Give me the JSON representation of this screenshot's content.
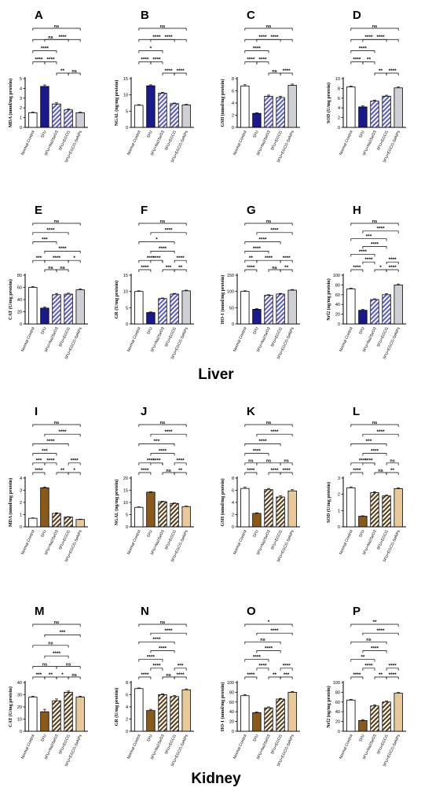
{
  "sections": {
    "liver": "Liver",
    "kidney": "Kidney"
  },
  "categories": [
    "Normal Control",
    "5FU",
    "5FU+Na2SeO3",
    "5FU+EGCG",
    "5FU+EGCG-SeNPs"
  ],
  "colors": {
    "liver": [
      "#ffffff",
      "#1a1a8c",
      "#9b9be6",
      "#c7c7f2",
      "#cfcfd6"
    ],
    "kidney": [
      "#ffffff",
      "#8b5a1a",
      "#9c6b2e",
      "#b98a4e",
      "#e8c99a"
    ],
    "liver_hatch": "#5a5ad0",
    "kidney_hatch": "#5a3a10"
  },
  "chart_data": [
    {
      "type": "bar",
      "panel": "A",
      "organ": "liver",
      "ylabel": "MDA (nmol/mg protein)",
      "ylim": [
        0,
        5
      ],
      "ticks": [
        0,
        1,
        2,
        3,
        4,
        5
      ],
      "values": [
        1.5,
        4.2,
        2.4,
        1.8,
        1.5
      ],
      "errors": [
        0.08,
        0.15,
        0.12,
        0.08,
        0.06
      ],
      "brackets": [
        [
          "ns",
          0,
          4,
          4
        ],
        [
          "ns",
          0,
          3,
          3
        ],
        [
          "****",
          0,
          2,
          2
        ],
        [
          "****",
          0,
          1,
          1
        ],
        [
          "****",
          1,
          4,
          3
        ],
        [
          "****",
          1,
          2,
          1
        ],
        [
          "**",
          2,
          3,
          0
        ],
        [
          "ns",
          3,
          4,
          0
        ]
      ]
    },
    {
      "type": "bar",
      "panel": "B",
      "organ": "liver",
      "ylabel": "NGAL (ng/mg protein)",
      "ylim": [
        0,
        15
      ],
      "ticks": [
        0,
        5,
        10,
        15
      ],
      "values": [
        6.8,
        12.8,
        10.5,
        7.3,
        6.9
      ],
      "errors": [
        0.2,
        0.3,
        0.3,
        0.2,
        0.2
      ],
      "brackets": [
        [
          "ns",
          0,
          4,
          4
        ],
        [
          "****",
          0,
          3,
          3
        ],
        [
          "*",
          0,
          2,
          2
        ],
        [
          "****",
          0,
          1,
          1
        ],
        [
          "****",
          1,
          4,
          3
        ],
        [
          "****",
          1,
          2,
          1
        ],
        [
          "****",
          2,
          3,
          0
        ],
        [
          "****",
          3,
          4,
          0
        ]
      ]
    },
    {
      "type": "bar",
      "panel": "C",
      "organ": "liver",
      "ylabel": "GSH (nmol/mg protein)",
      "ylim": [
        0,
        8
      ],
      "ticks": [
        0,
        2,
        4,
        6,
        8
      ],
      "values": [
        6.8,
        2.3,
        5.1,
        4.9,
        6.9
      ],
      "errors": [
        0.2,
        0.1,
        0.2,
        0.2,
        0.2
      ],
      "brackets": [
        [
          "ns",
          0,
          4,
          4
        ],
        [
          "****",
          0,
          3,
          3
        ],
        [
          "****",
          0,
          2,
          2
        ],
        [
          "****",
          0,
          1,
          1
        ],
        [
          "****",
          1,
          4,
          3
        ],
        [
          "****",
          1,
          2,
          1
        ],
        [
          "ns",
          2,
          3,
          0
        ],
        [
          "****",
          3,
          4,
          0
        ]
      ]
    },
    {
      "type": "bar",
      "panel": "D",
      "organ": "liver",
      "ylabel": "SOD (U/mg protein)",
      "ylim": [
        0,
        10
      ],
      "ticks": [
        0,
        2,
        4,
        6,
        8,
        10
      ],
      "values": [
        8.3,
        4.2,
        5.4,
        6.4,
        8.1
      ],
      "errors": [
        0.2,
        0.2,
        0.2,
        0.2,
        0.2
      ],
      "brackets": [
        [
          "ns",
          0,
          4,
          4
        ],
        [
          "****",
          0,
          3,
          3
        ],
        [
          "****",
          0,
          2,
          2
        ],
        [
          "****",
          0,
          1,
          1
        ],
        [
          "****",
          1,
          4,
          3
        ],
        [
          "**",
          1,
          2,
          1
        ],
        [
          "**",
          2,
          3,
          0
        ],
        [
          "****",
          3,
          4,
          0
        ]
      ]
    },
    {
      "type": "bar",
      "panel": "E",
      "organ": "liver",
      "ylabel": "CAT (U/mg protein)",
      "ylim": [
        0,
        80
      ],
      "ticks": [
        0,
        20,
        40,
        60,
        80
      ],
      "values": [
        60,
        26,
        48,
        49,
        56
      ],
      "errors": [
        1.5,
        2,
        2,
        1.5,
        1.5
      ],
      "brackets": [
        [
          "ns",
          0,
          4,
          5
        ],
        [
          "****",
          0,
          3,
          4
        ],
        [
          "***",
          0,
          2,
          3
        ],
        [
          "****",
          1,
          4,
          2
        ],
        [
          "***",
          0,
          1,
          1
        ],
        [
          "****",
          1,
          3,
          1
        ],
        [
          "*",
          3,
          4,
          1
        ],
        [
          "ns",
          1,
          2,
          0
        ],
        [
          "ns",
          2,
          3,
          0
        ]
      ]
    },
    {
      "type": "bar",
      "panel": "F",
      "organ": "liver",
      "ylabel": "GR (U/mg protein)",
      "ylim": [
        0,
        15
      ],
      "ticks": [
        0,
        5,
        10,
        15
      ],
      "values": [
        10,
        3.5,
        7.8,
        9.2,
        10.2
      ],
      "errors": [
        0.2,
        0.2,
        0.2,
        0.2,
        0.2
      ],
      "brackets": [
        [
          "ns",
          0,
          4,
          5
        ],
        [
          "****",
          1,
          4,
          4
        ],
        [
          "*",
          0,
          3,
          3
        ],
        [
          "****",
          1,
          3,
          2
        ],
        [
          "****",
          0,
          2,
          1
        ],
        [
          "****",
          1,
          2,
          1
        ],
        [
          "****",
          3,
          4,
          1
        ],
        [
          "****",
          0,
          1,
          0
        ],
        [
          "***",
          2,
          3,
          0
        ],
        [
          "**",
          3,
          4,
          0
        ]
      ]
    },
    {
      "type": "bar",
      "panel": "G",
      "organ": "liver",
      "ylabel": "HO-1 (nmol/mg protein)",
      "ylim": [
        0,
        150
      ],
      "ticks": [
        0,
        50,
        100,
        150
      ],
      "values": [
        100,
        45,
        88,
        92,
        104
      ],
      "errors": [
        2,
        2,
        2,
        2,
        2
      ],
      "brackets": [
        [
          "ns",
          0,
          4,
          5
        ],
        [
          "****",
          1,
          4,
          4
        ],
        [
          "****",
          0,
          3,
          3
        ],
        [
          "****",
          0,
          2,
          2
        ],
        [
          "**",
          0,
          1,
          1
        ],
        [
          "****",
          1,
          3,
          1
        ],
        [
          "****",
          3,
          4,
          1
        ],
        [
          "****",
          0,
          1,
          0
        ],
        [
          "ns",
          2,
          3,
          0
        ],
        [
          "**",
          3,
          4,
          0
        ]
      ]
    },
    {
      "type": "bar",
      "panel": "H",
      "organ": "liver",
      "ylabel": "Nrf2 (ng/mg protein)",
      "ylim": [
        0,
        100
      ],
      "ticks": [
        0,
        20,
        40,
        60,
        80,
        100
      ],
      "values": [
        72,
        28,
        50,
        60,
        80
      ],
      "errors": [
        1.5,
        2,
        1.5,
        2,
        2
      ],
      "brackets": [
        [
          "ns",
          0,
          4,
          6
        ],
        [
          "****",
          1,
          4,
          5
        ],
        [
          "***",
          0,
          3,
          4
        ],
        [
          "****",
          1,
          3,
          3
        ],
        [
          "****",
          0,
          2,
          2
        ],
        [
          "****",
          1,
          2,
          1
        ],
        [
          "****",
          3,
          4,
          1
        ],
        [
          "****",
          0,
          1,
          0
        ],
        [
          "*",
          2,
          3,
          0
        ],
        [
          "****",
          3,
          4,
          0
        ]
      ]
    },
    {
      "type": "bar",
      "panel": "I",
      "organ": "kidney",
      "ylabel": "MDA (nmol/mg protein)",
      "ylim": [
        0,
        4
      ],
      "ticks": [
        0,
        1,
        2,
        3,
        4
      ],
      "values": [
        0.7,
        3.2,
        1.1,
        0.8,
        0.6
      ],
      "errors": [
        0.03,
        0.06,
        0.05,
        0.03,
        0.03
      ],
      "brackets": [
        [
          "ns",
          0,
          4,
          5
        ],
        [
          "****",
          1,
          4,
          4
        ],
        [
          "****",
          0,
          3,
          3
        ],
        [
          "***",
          0,
          2,
          2
        ],
        [
          "***",
          0,
          1,
          1
        ],
        [
          "****",
          1,
          2,
          1
        ],
        [
          "****",
          3,
          4,
          1
        ],
        [
          "****",
          0,
          1,
          0
        ],
        [
          "**",
          2,
          3,
          0
        ],
        [
          "*",
          3,
          4,
          0
        ]
      ]
    },
    {
      "type": "bar",
      "panel": "J",
      "organ": "kidney",
      "ylabel": "NGAL (ng/mg protein)",
      "ylim": [
        0,
        20
      ],
      "ticks": [
        0,
        5,
        10,
        15,
        20
      ],
      "values": [
        8,
        14.2,
        10.3,
        9.6,
        8.3
      ],
      "errors": [
        0.2,
        0.2,
        0.2,
        0.2,
        0.2
      ],
      "brackets": [
        [
          "ns",
          0,
          4,
          5
        ],
        [
          "****",
          1,
          4,
          4
        ],
        [
          "***",
          0,
          3,
          3
        ],
        [
          "****",
          1,
          3,
          2
        ],
        [
          "****",
          0,
          2,
          1
        ],
        [
          "****",
          1,
          2,
          1
        ],
        [
          "****",
          3,
          4,
          1
        ],
        [
          "****",
          0,
          1,
          0
        ],
        [
          "ns",
          2,
          3,
          0
        ],
        [
          "**",
          3,
          4,
          0
        ]
      ]
    },
    {
      "type": "bar",
      "panel": "K",
      "organ": "kidney",
      "ylabel": "GSH (nmol/mg protein)",
      "ylim": [
        0,
        8
      ],
      "ticks": [
        0,
        2,
        4,
        6,
        8
      ],
      "values": [
        6.3,
        2.2,
        6.1,
        4.9,
        5.9
      ],
      "errors": [
        0.2,
        0.1,
        0.2,
        0.2,
        0.2
      ],
      "brackets": [
        [
          "ns",
          0,
          4,
          5
        ],
        [
          "****",
          1,
          4,
          4
        ],
        [
          "****",
          0,
          3,
          3
        ],
        [
          "****",
          0,
          2,
          2
        ],
        [
          "ns",
          0,
          1,
          1
        ],
        [
          "ns",
          1,
          3,
          1
        ],
        [
          "ns",
          3,
          4,
          1
        ],
        [
          "****",
          0,
          1,
          0
        ],
        [
          "****",
          2,
          3,
          0
        ],
        [
          "****",
          3,
          4,
          0
        ]
      ]
    },
    {
      "type": "bar",
      "panel": "L",
      "organ": "kidney",
      "ylabel": "SOD (U/mg protein)",
      "ylim": [
        0,
        3
      ],
      "ticks": [
        0,
        1,
        2,
        3
      ],
      "values": [
        2.4,
        0.65,
        2.1,
        1.9,
        2.35
      ],
      "errors": [
        0.06,
        0.03,
        0.05,
        0.05,
        0.05
      ],
      "brackets": [
        [
          "ns",
          0,
          4,
          5
        ],
        [
          "****",
          1,
          4,
          4
        ],
        [
          "***",
          0,
          3,
          3
        ],
        [
          "****",
          1,
          3,
          2
        ],
        [
          "****",
          0,
          2,
          1
        ],
        [
          "****",
          1,
          2,
          1
        ],
        [
          "ns",
          3,
          4,
          1
        ],
        [
          "****",
          0,
          1,
          0
        ],
        [
          "ns",
          2,
          3,
          0
        ],
        [
          "**",
          3,
          4,
          0
        ]
      ]
    },
    {
      "type": "bar",
      "panel": "M",
      "organ": "kidney",
      "ylabel": "CAT (U/mg protein)",
      "ylim": [
        0,
        40
      ],
      "ticks": [
        0,
        10,
        20,
        30,
        40
      ],
      "values": [
        28,
        16,
        25,
        32,
        28
      ],
      "errors": [
        0.6,
        2,
        1.5,
        1,
        0.8
      ],
      "brackets": [
        [
          "ns",
          0,
          4,
          5
        ],
        [
          "***",
          1,
          4,
          4
        ],
        [
          "ns",
          0,
          3,
          3
        ],
        [
          "****",
          1,
          3,
          2
        ],
        [
          "ns",
          0,
          2,
          1
        ],
        [
          "ns",
          2,
          4,
          1
        ],
        [
          "***",
          0,
          1,
          0
        ],
        [
          "**",
          1,
          2,
          0
        ],
        [
          "*",
          2,
          3,
          0
        ],
        [
          "ns",
          3,
          4,
          0
        ]
      ]
    },
    {
      "type": "bar",
      "panel": "N",
      "organ": "kidney",
      "ylabel": "GR (U/mg protein)",
      "ylim": [
        0,
        8
      ],
      "ticks": [
        0,
        2,
        4,
        6,
        8
      ],
      "values": [
        7,
        3.4,
        6,
        5.7,
        6.8
      ],
      "errors": [
        0.1,
        0.2,
        0.15,
        0.15,
        0.15
      ],
      "brackets": [
        [
          "ns",
          0,
          4,
          6
        ],
        [
          "****",
          1,
          4,
          5
        ],
        [
          "****",
          0,
          3,
          4
        ],
        [
          "****",
          1,
          3,
          3
        ],
        [
          "****",
          0,
          2,
          2
        ],
        [
          "****",
          1,
          2,
          1
        ],
        [
          "***",
          3,
          4,
          1
        ],
        [
          "****",
          0,
          1,
          0
        ],
        [
          "ns",
          2,
          3,
          0
        ],
        [
          "****",
          3,
          4,
          0
        ]
      ]
    },
    {
      "type": "bar",
      "panel": "O",
      "organ": "kidney",
      "ylabel": "HO-1 (nmol/mg protein)",
      "ylim": [
        0,
        100
      ],
      "ticks": [
        0,
        20,
        40,
        60,
        80,
        100
      ],
      "values": [
        73,
        38,
        48,
        66,
        80
      ],
      "errors": [
        2,
        1.5,
        2,
        1.5,
        1.5
      ],
      "brackets": [
        [
          "*",
          0,
          4,
          6
        ],
        [
          "****",
          1,
          4,
          5
        ],
        [
          "ns",
          0,
          3,
          4
        ],
        [
          "****",
          1,
          3,
          3
        ],
        [
          "****",
          0,
          2,
          2
        ],
        [
          "****",
          1,
          2,
          1
        ],
        [
          "****",
          3,
          4,
          1
        ],
        [
          "****",
          0,
          1,
          0
        ],
        [
          "**",
          2,
          3,
          0
        ],
        [
          "***",
          3,
          4,
          0
        ]
      ]
    },
    {
      "type": "bar",
      "panel": "P",
      "organ": "kidney",
      "ylabel": "Nrf2 (ng/mg protein)",
      "ylim": [
        0,
        100
      ],
      "ticks": [
        0,
        20,
        40,
        60,
        80,
        100
      ],
      "values": [
        64,
        22,
        52,
        60,
        78
      ],
      "errors": [
        1.5,
        2,
        2,
        2,
        1.5
      ],
      "brackets": [
        [
          "**",
          0,
          4,
          6
        ],
        [
          "****",
          1,
          4,
          5
        ],
        [
          "ns",
          0,
          3,
          4
        ],
        [
          "****",
          1,
          3,
          3
        ],
        [
          "**",
          0,
          2,
          2
        ],
        [
          "****",
          1,
          2,
          1
        ],
        [
          "****",
          3,
          4,
          1
        ],
        [
          "****",
          0,
          1,
          0
        ],
        [
          "**",
          2,
          3,
          0
        ],
        [
          "****",
          3,
          4,
          0
        ]
      ]
    }
  ]
}
